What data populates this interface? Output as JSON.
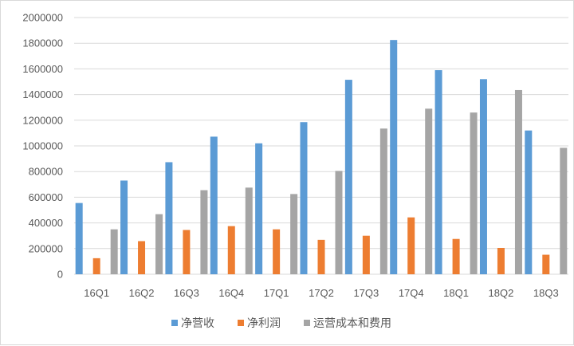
{
  "chart_data": {
    "type": "bar",
    "categories": [
      "16Q1",
      "16Q2",
      "16Q3",
      "16Q4",
      "17Q1",
      "17Q2",
      "17Q3",
      "17Q4",
      "18Q1",
      "18Q2",
      "18Q3"
    ],
    "series": [
      {
        "name": "净营收",
        "color": "#5b9bd5",
        "values": [
          555000,
          730000,
          873000,
          1072000,
          1020000,
          1185000,
          1515000,
          1825000,
          1590000,
          1520000,
          1120000
        ]
      },
      {
        "name": "净利润",
        "color": "#ed7d31",
        "values": [
          125000,
          258000,
          345000,
          375000,
          350000,
          268000,
          300000,
          443000,
          275000,
          205000,
          152000
        ]
      },
      {
        "name": "运营成本和费用",
        "color": "#a5a5a5",
        "values": [
          350000,
          468000,
          655000,
          675000,
          625000,
          805000,
          1135000,
          1290000,
          1260000,
          1435000,
          985000
        ]
      }
    ],
    "ylim": [
      0,
      2000000
    ],
    "yticks": [
      "0",
      "200000",
      "400000",
      "600000",
      "800000",
      "1000000",
      "1200000",
      "1400000",
      "1600000",
      "1800000",
      "2000000"
    ],
    "grid": true,
    "legend_position": "bottom"
  }
}
